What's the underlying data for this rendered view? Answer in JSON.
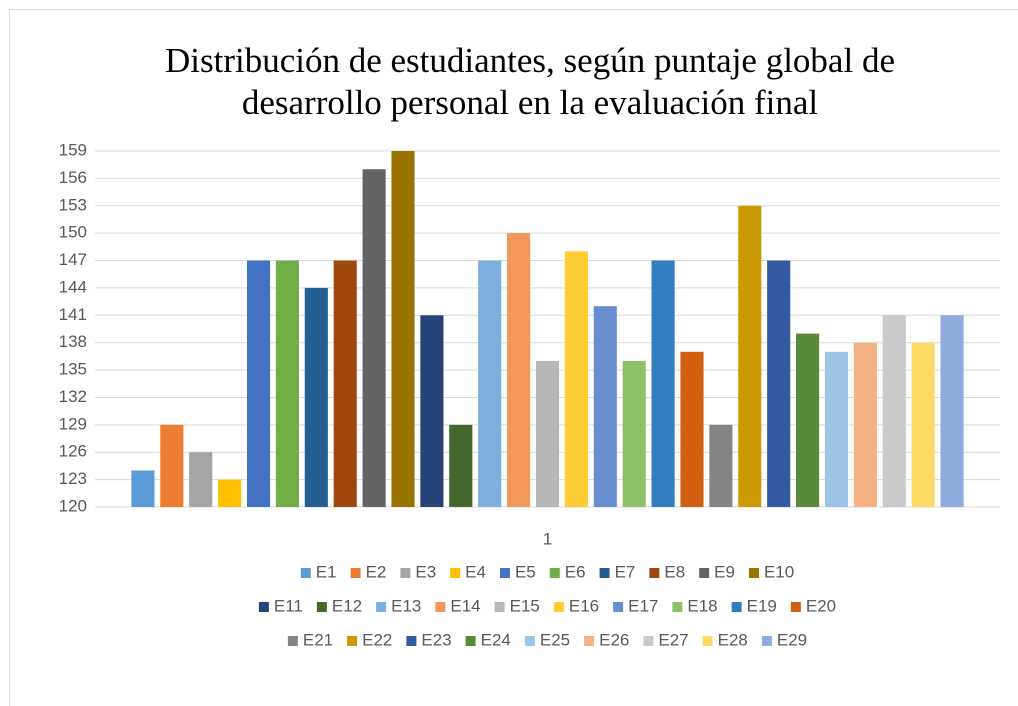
{
  "chart_data": {
    "type": "bar",
    "title": [
      "Distribución de estudiantes, según puntaje global de",
      "desarrollo personal en la evaluación final"
    ],
    "categories": [
      "1"
    ],
    "series": [
      {
        "name": "E1",
        "color": "#5b9bd5",
        "values": [
          124
        ]
      },
      {
        "name": "E2",
        "color": "#ed7d31",
        "values": [
          129
        ]
      },
      {
        "name": "E3",
        "color": "#a5a5a5",
        "values": [
          126
        ]
      },
      {
        "name": "E4",
        "color": "#ffc000",
        "values": [
          123
        ]
      },
      {
        "name": "E5",
        "color": "#4472c4",
        "values": [
          147
        ]
      },
      {
        "name": "E6",
        "color": "#70ad47",
        "values": [
          147
        ]
      },
      {
        "name": "E7",
        "color": "#255e91",
        "values": [
          144
        ]
      },
      {
        "name": "E8",
        "color": "#9e480e",
        "values": [
          147
        ]
      },
      {
        "name": "E9",
        "color": "#636363",
        "values": [
          157
        ]
      },
      {
        "name": "E10",
        "color": "#997300",
        "values": [
          159
        ]
      },
      {
        "name": "E11",
        "color": "#264478",
        "values": [
          141
        ]
      },
      {
        "name": "E12",
        "color": "#43682b",
        "values": [
          129
        ]
      },
      {
        "name": "E13",
        "color": "#7cafdd",
        "values": [
          147
        ]
      },
      {
        "name": "E14",
        "color": "#f1975a",
        "values": [
          150
        ]
      },
      {
        "name": "E15",
        "color": "#b7b7b7",
        "values": [
          136
        ]
      },
      {
        "name": "E16",
        "color": "#ffcd33",
        "values": [
          148
        ]
      },
      {
        "name": "E17",
        "color": "#698ed0",
        "values": [
          142
        ]
      },
      {
        "name": "E18",
        "color": "#8cc168",
        "values": [
          136
        ]
      },
      {
        "name": "E19",
        "color": "#327dc2",
        "values": [
          147
        ]
      },
      {
        "name": "E20",
        "color": "#d26012",
        "values": [
          137
        ]
      },
      {
        "name": "E21",
        "color": "#848484",
        "values": [
          129
        ]
      },
      {
        "name": "E22",
        "color": "#cc9a00",
        "values": [
          153
        ]
      },
      {
        "name": "E23",
        "color": "#335aa1",
        "values": [
          147
        ]
      },
      {
        "name": "E24",
        "color": "#5a8a39",
        "values": [
          139
        ]
      },
      {
        "name": "E25",
        "color": "#9dc3e6",
        "values": [
          137
        ]
      },
      {
        "name": "E26",
        "color": "#f4b183",
        "values": [
          138
        ]
      },
      {
        "name": "E27",
        "color": "#c9c9c9",
        "values": [
          141
        ]
      },
      {
        "name": "E28",
        "color": "#ffd966",
        "values": [
          138
        ]
      },
      {
        "name": "E29",
        "color": "#8faadc",
        "values": [
          141
        ]
      }
    ],
    "ylim": [
      120,
      159
    ],
    "yticks": [
      120,
      123,
      126,
      129,
      132,
      135,
      138,
      141,
      144,
      147,
      150,
      153,
      156,
      159
    ],
    "grid": true,
    "legend": "bottom"
  }
}
